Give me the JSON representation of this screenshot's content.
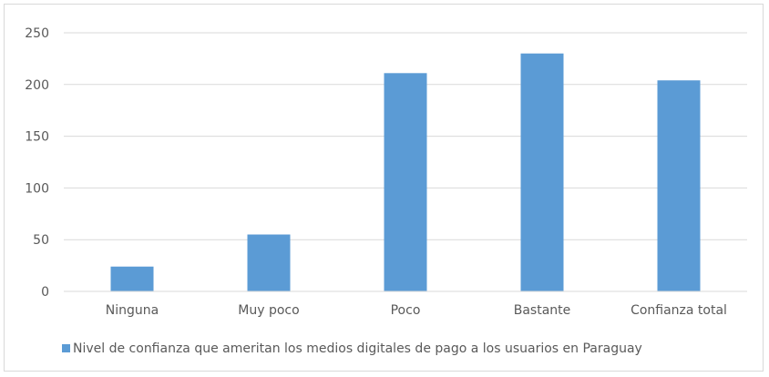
{
  "chart_data": {
    "type": "bar",
    "categories": [
      "Ninguna",
      "Muy poco",
      "Poco",
      "Bastante",
      "Confianza total"
    ],
    "series": [
      {
        "name": "Nivel de confianza que ameritan los medios digitales de pago a los usuarios en Paraguay",
        "values": [
          24,
          55,
          211,
          230,
          204
        ],
        "color": "#5b9bd5"
      }
    ],
    "ylim": [
      0,
      250
    ],
    "yticks": [
      0,
      50,
      100,
      150,
      200,
      250
    ],
    "grid": true,
    "legend_position": "bottom"
  }
}
